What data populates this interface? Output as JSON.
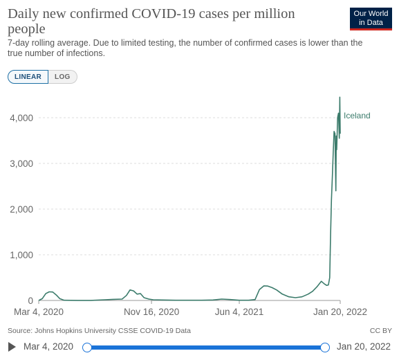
{
  "header": {
    "title": "Daily new confirmed COVID-19 cases per million people",
    "subtitle": "7-day rolling average. Due to limited testing, the number of confirmed cases is lower than the true number of infections.",
    "logo_line1": "Our World",
    "logo_line2": "in Data"
  },
  "scale_toggle": {
    "linear_label": "LINEAR",
    "log_label": "LOG",
    "selected": "LINEAR"
  },
  "footer": {
    "source": "Source: Johns Hopkins University CSSE COVID-19 Data",
    "license": "CC BY"
  },
  "timeline": {
    "start_label": "Mar 4, 2020",
    "end_label": "Jan 20, 2022"
  },
  "colors": {
    "series": "#3b7b6b",
    "slider": "#1a73d8",
    "logo_bg": "#002147",
    "logo_accent": "#ce261e"
  },
  "chart_data": {
    "type": "line",
    "title": "Daily new confirmed COVID-19 cases per million people",
    "subtitle": "7-day rolling average. Due to limited testing, the number of confirmed cases is lower than the true number of infections.",
    "xlabel": "",
    "ylabel": "",
    "xlim": [
      "2020-03-04",
      "2022-01-20"
    ],
    "ylim": [
      0,
      4000
    ],
    "y_ticks": [
      0,
      1000,
      2000,
      3000,
      4000
    ],
    "y_tick_labels": [
      "0",
      "1,000",
      "2,000",
      "3,000",
      "4,000"
    ],
    "x_ticks": [
      "2020-03-04",
      "2020-11-16",
      "2021-06-04",
      "2022-01-20"
    ],
    "x_tick_labels": [
      "Mar 4, 2020",
      "Nov 16, 2020",
      "Jun 4, 2021",
      "Jan 20, 2022"
    ],
    "grid": "horizontal dashed",
    "series": [
      {
        "name": "Iceland",
        "x": [
          "2020-03-04",
          "2020-03-12",
          "2020-03-20",
          "2020-03-28",
          "2020-04-05",
          "2020-04-13",
          "2020-04-21",
          "2020-05-01",
          "2020-06-01",
          "2020-07-01",
          "2020-08-01",
          "2020-08-20",
          "2020-09-10",
          "2020-09-20",
          "2020-09-28",
          "2020-10-06",
          "2020-10-14",
          "2020-10-22",
          "2020-10-30",
          "2020-11-10",
          "2020-11-20",
          "2020-12-10",
          "2021-01-10",
          "2021-02-10",
          "2021-03-10",
          "2021-04-05",
          "2021-04-25",
          "2021-05-15",
          "2021-06-04",
          "2021-06-25",
          "2021-07-10",
          "2021-07-20",
          "2021-07-30",
          "2021-08-08",
          "2021-08-18",
          "2021-08-28",
          "2021-09-10",
          "2021-09-25",
          "2021-10-10",
          "2021-10-25",
          "2021-11-08",
          "2021-11-18",
          "2021-11-28",
          "2021-12-08",
          "2021-12-15",
          "2021-12-20",
          "2021-12-24",
          "2021-12-27",
          "2021-12-29",
          "2021-12-31",
          "2022-01-02",
          "2022-01-04",
          "2022-01-06",
          "2022-01-08",
          "2022-01-10",
          "2022-01-11",
          "2022-01-12",
          "2022-01-13",
          "2022-01-14",
          "2022-01-16",
          "2022-01-18",
          "2022-01-19",
          "2022-01-20"
        ],
        "values": [
          0,
          40,
          150,
          190,
          185,
          120,
          40,
          5,
          2,
          2,
          15,
          25,
          30,
          110,
          230,
          210,
          140,
          150,
          60,
          30,
          15,
          10,
          5,
          5,
          5,
          10,
          30,
          20,
          5,
          5,
          20,
          240,
          320,
          315,
          280,
          230,
          140,
          80,
          60,
          80,
          140,
          200,
          300,
          420,
          360,
          330,
          340,
          500,
          1400,
          2200,
          2700,
          3200,
          3700,
          3650,
          2400,
          3600,
          3300,
          3650,
          4000,
          4100,
          3550,
          4450,
          3650
        ]
      }
    ]
  }
}
